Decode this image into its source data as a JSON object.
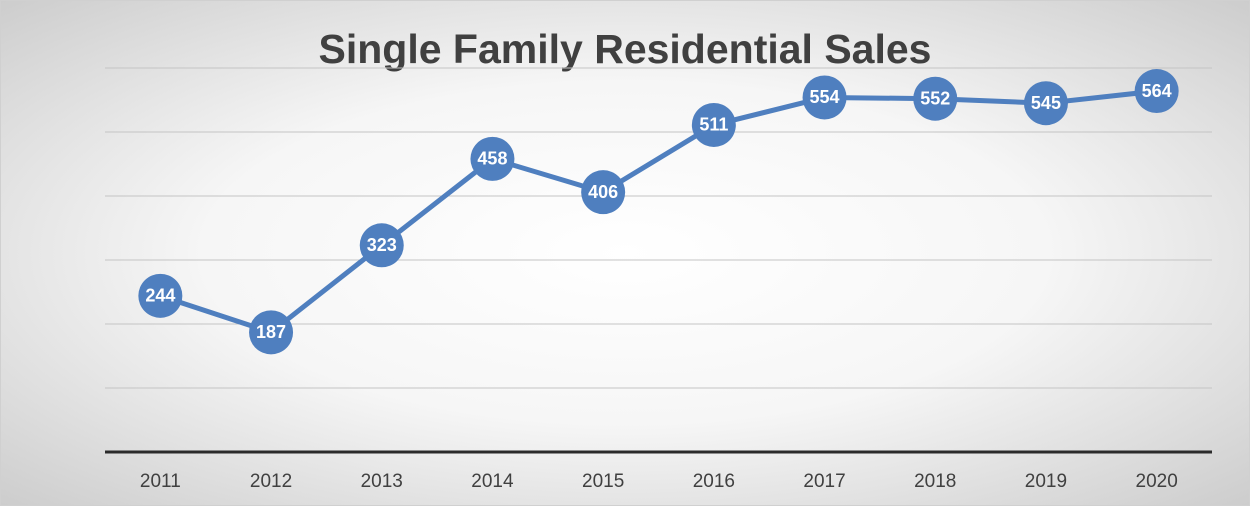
{
  "chart_data": {
    "type": "line",
    "title": "Single Family Residential Sales",
    "categories": [
      "2011",
      "2012",
      "2013",
      "2014",
      "2015",
      "2016",
      "2017",
      "2018",
      "2019",
      "2020"
    ],
    "values": [
      244,
      187,
      323,
      458,
      406,
      511,
      554,
      552,
      545,
      564
    ],
    "color": "#4f7fbf",
    "ylim": [
      0,
      600
    ],
    "yticks": [
      0,
      100,
      200,
      300,
      400,
      500,
      600
    ],
    "grid": true,
    "data_labels": true
  }
}
